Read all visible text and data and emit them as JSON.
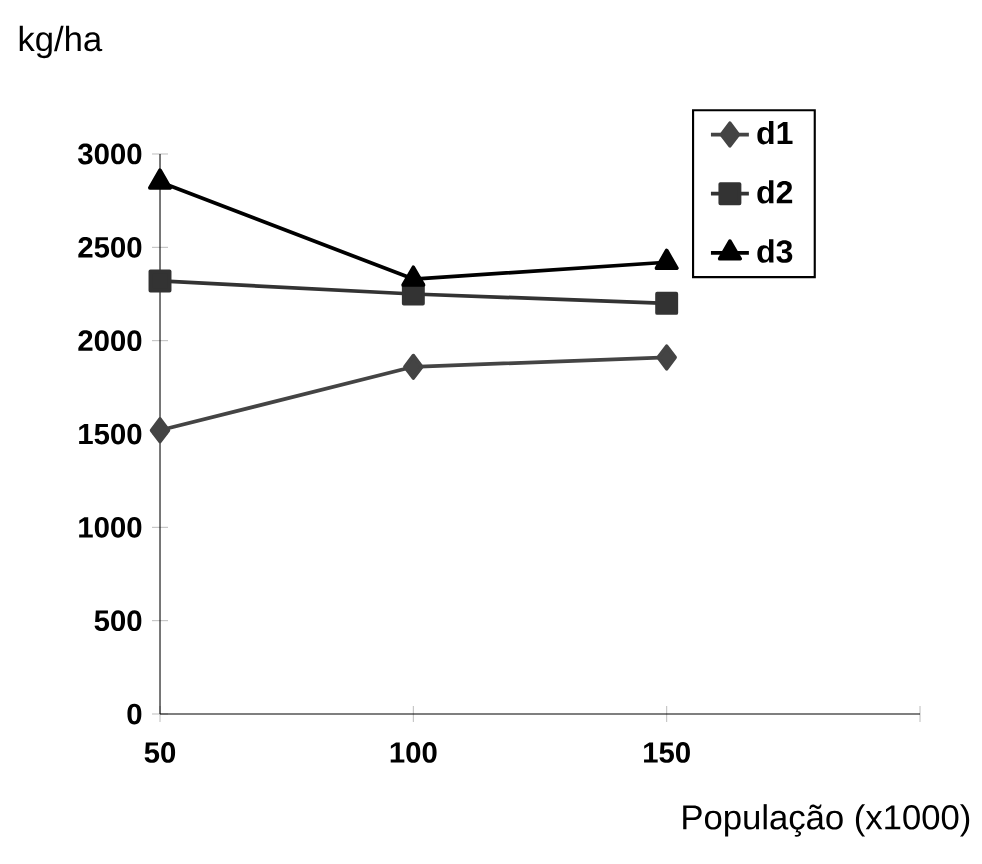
{
  "chart_data": {
    "type": "line",
    "xlabel": "População (x1000)",
    "ylabel": "kg/ha",
    "x": [
      50,
      100,
      150
    ],
    "series": [
      {
        "name": "d1",
        "color": "#444444",
        "marker": "diamond",
        "values": [
          1520,
          1860,
          1910
        ]
      },
      {
        "name": "d2",
        "color": "#333333",
        "marker": "square",
        "values": [
          2320,
          2250,
          2200
        ]
      },
      {
        "name": "d3",
        "color": "#000000",
        "marker": "triangle",
        "values": [
          2850,
          2330,
          2420
        ]
      }
    ],
    "xlim": [
      50,
      200
    ],
    "xticks": [
      50,
      100,
      150,
      {
        "value": 200,
        "label": null
      }
    ],
    "ylim": [
      0,
      3000
    ],
    "yticks": [
      0,
      500,
      1000,
      1500,
      2000,
      2500,
      3000
    ],
    "legend": "top right",
    "line_style": "solid"
  }
}
